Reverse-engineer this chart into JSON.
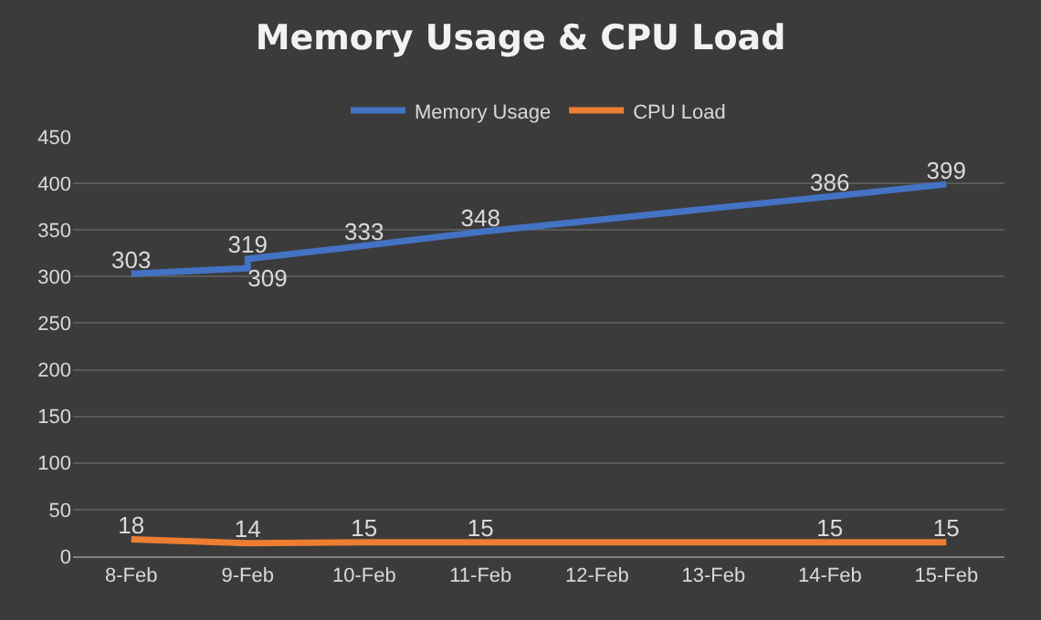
{
  "chart_data": {
    "type": "line",
    "title": "Memory Usage & CPU Load",
    "series": [
      {
        "name": "Memory Usage",
        "color": "#4472c4",
        "x": [
          "--02-08",
          "--02-09",
          "--02-09",
          "--02-10",
          "--02-11",
          "--02-14",
          "--02-15"
        ],
        "values": [
          303,
          309,
          319,
          333,
          348,
          386,
          399
        ]
      },
      {
        "name": "CPU Load",
        "color": "#ed7d31",
        "x": [
          "--02-08",
          "--02-09",
          "--02-10",
          "--02-11",
          "--02-14",
          "--02-15"
        ],
        "values": [
          18,
          14,
          15,
          15,
          15,
          15
        ]
      }
    ],
    "xlim": [
      "--02-07T12:00",
      "--02-15T12:00"
    ],
    "xticks": [
      {
        "value": "--02-08",
        "label": "8-Feb"
      },
      {
        "value": "--02-09",
        "label": "9-Feb"
      },
      {
        "value": "--02-10",
        "label": "10-Feb"
      },
      {
        "value": "--02-11",
        "label": "11-Feb"
      },
      {
        "value": "--02-12",
        "label": "12-Feb"
      },
      {
        "value": "--02-13",
        "label": "13-Feb"
      },
      {
        "value": "--02-14",
        "label": "14-Feb"
      },
      {
        "value": "--02-15",
        "label": "15-Feb"
      }
    ],
    "ylim": [
      0,
      450
    ],
    "yticks": [
      0,
      50,
      100,
      150,
      200,
      250,
      300,
      350,
      400,
      450
    ],
    "grid": "y",
    "legend": "top",
    "marker": "none",
    "line_style": "solid",
    "data_labels": true
  }
}
